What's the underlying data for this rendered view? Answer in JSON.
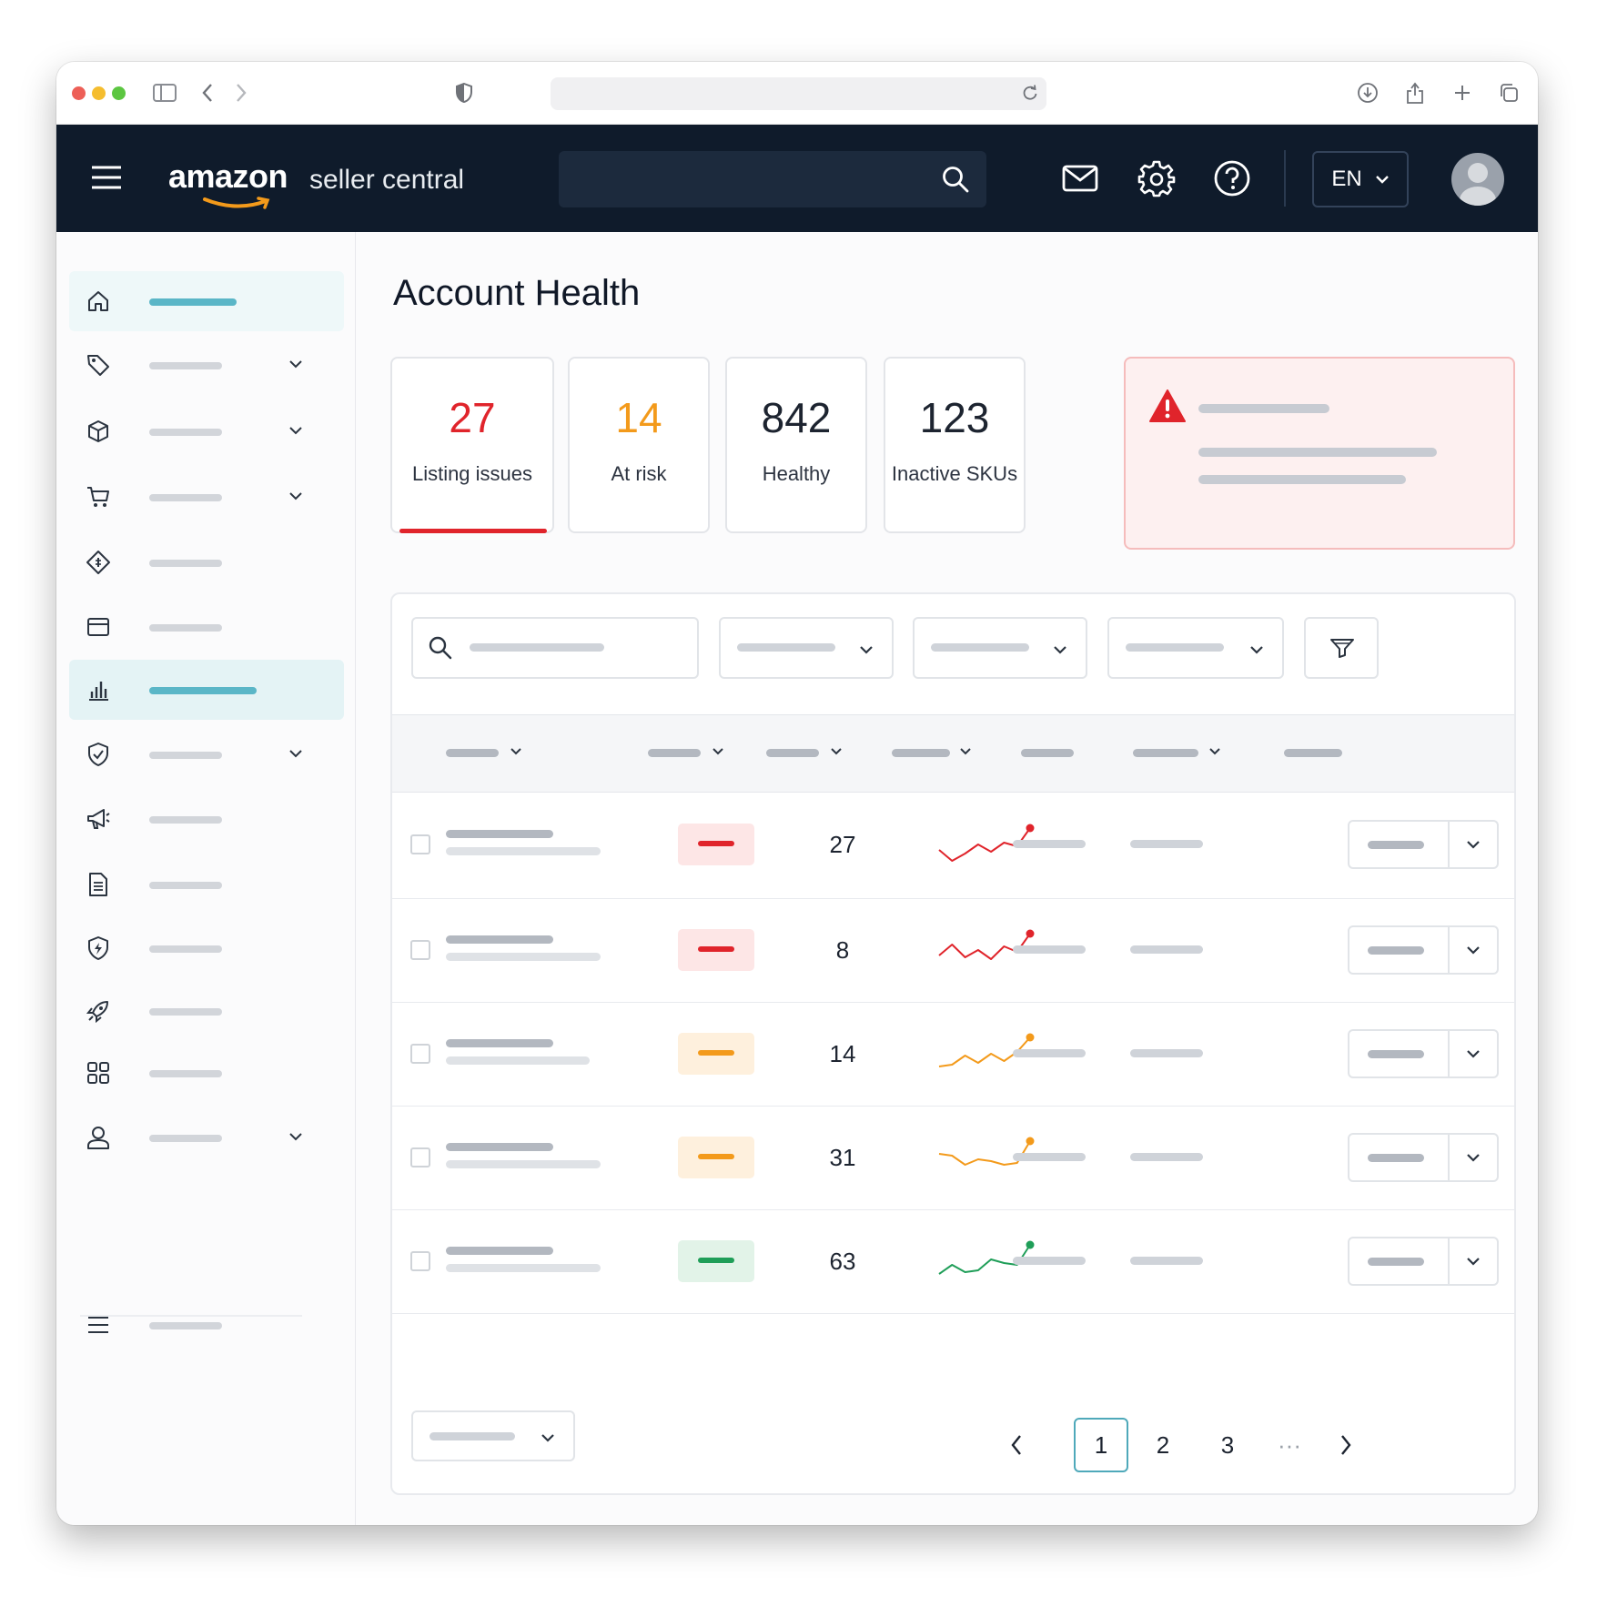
{
  "header": {
    "logo_text": "amazon",
    "logo_sub": "seller central",
    "language": "EN"
  },
  "page": {
    "title": "Account Health"
  },
  "stats": [
    {
      "value": "27",
      "label": "Listing issues",
      "color": "#e0242b"
    },
    {
      "value": "14",
      "label": "At risk",
      "color": "#f39a1b"
    },
    {
      "value": "842",
      "label": "Healthy",
      "color": "#1d2430"
    },
    {
      "value": "123",
      "label": "Inactive SKUs",
      "color": "#1d2430"
    }
  ],
  "colors": {
    "red": "#e0242b",
    "orange": "#f39a1b",
    "green": "#1f9e58",
    "teal": "#4fa9ba",
    "header_bg": "#0f1b2b"
  },
  "rows": [
    {
      "count": "27",
      "status": "red",
      "trend": [
        0.4,
        0.1,
        0.3,
        0.55,
        0.35,
        0.6,
        0.5,
        1.0
      ]
    },
    {
      "count": "8",
      "status": "red",
      "trend": [
        0.4,
        0.7,
        0.35,
        0.55,
        0.3,
        0.65,
        0.5,
        1.0
      ]
    },
    {
      "count": "14",
      "status": "orange",
      "trend": [
        0.2,
        0.25,
        0.5,
        0.3,
        0.55,
        0.35,
        0.6,
        1.0
      ]
    },
    {
      "count": "31",
      "status": "orange",
      "trend": [
        0.65,
        0.6,
        0.35,
        0.5,
        0.45,
        0.35,
        0.4,
        1.0
      ]
    },
    {
      "count": "63",
      "status": "green",
      "trend": [
        0.2,
        0.45,
        0.25,
        0.3,
        0.6,
        0.5,
        0.45,
        1.0
      ]
    }
  ],
  "pagination": {
    "pages": [
      "1",
      "2",
      "3"
    ],
    "ellipsis": "···",
    "current": "1"
  },
  "icons": {
    "sidebar": [
      "home-icon",
      "tag-icon",
      "box-icon",
      "cart-icon",
      "diamond-icon",
      "card-icon",
      "chart-icon",
      "shield-check-icon",
      "megaphone-icon",
      "document-icon",
      "shield-badge-icon",
      "rocket-icon",
      "grid-icon",
      "user-icon"
    ],
    "header": [
      "menu-icon",
      "search-icon",
      "mail-icon",
      "gear-icon",
      "help-icon",
      "chevron-down-icon"
    ]
  }
}
